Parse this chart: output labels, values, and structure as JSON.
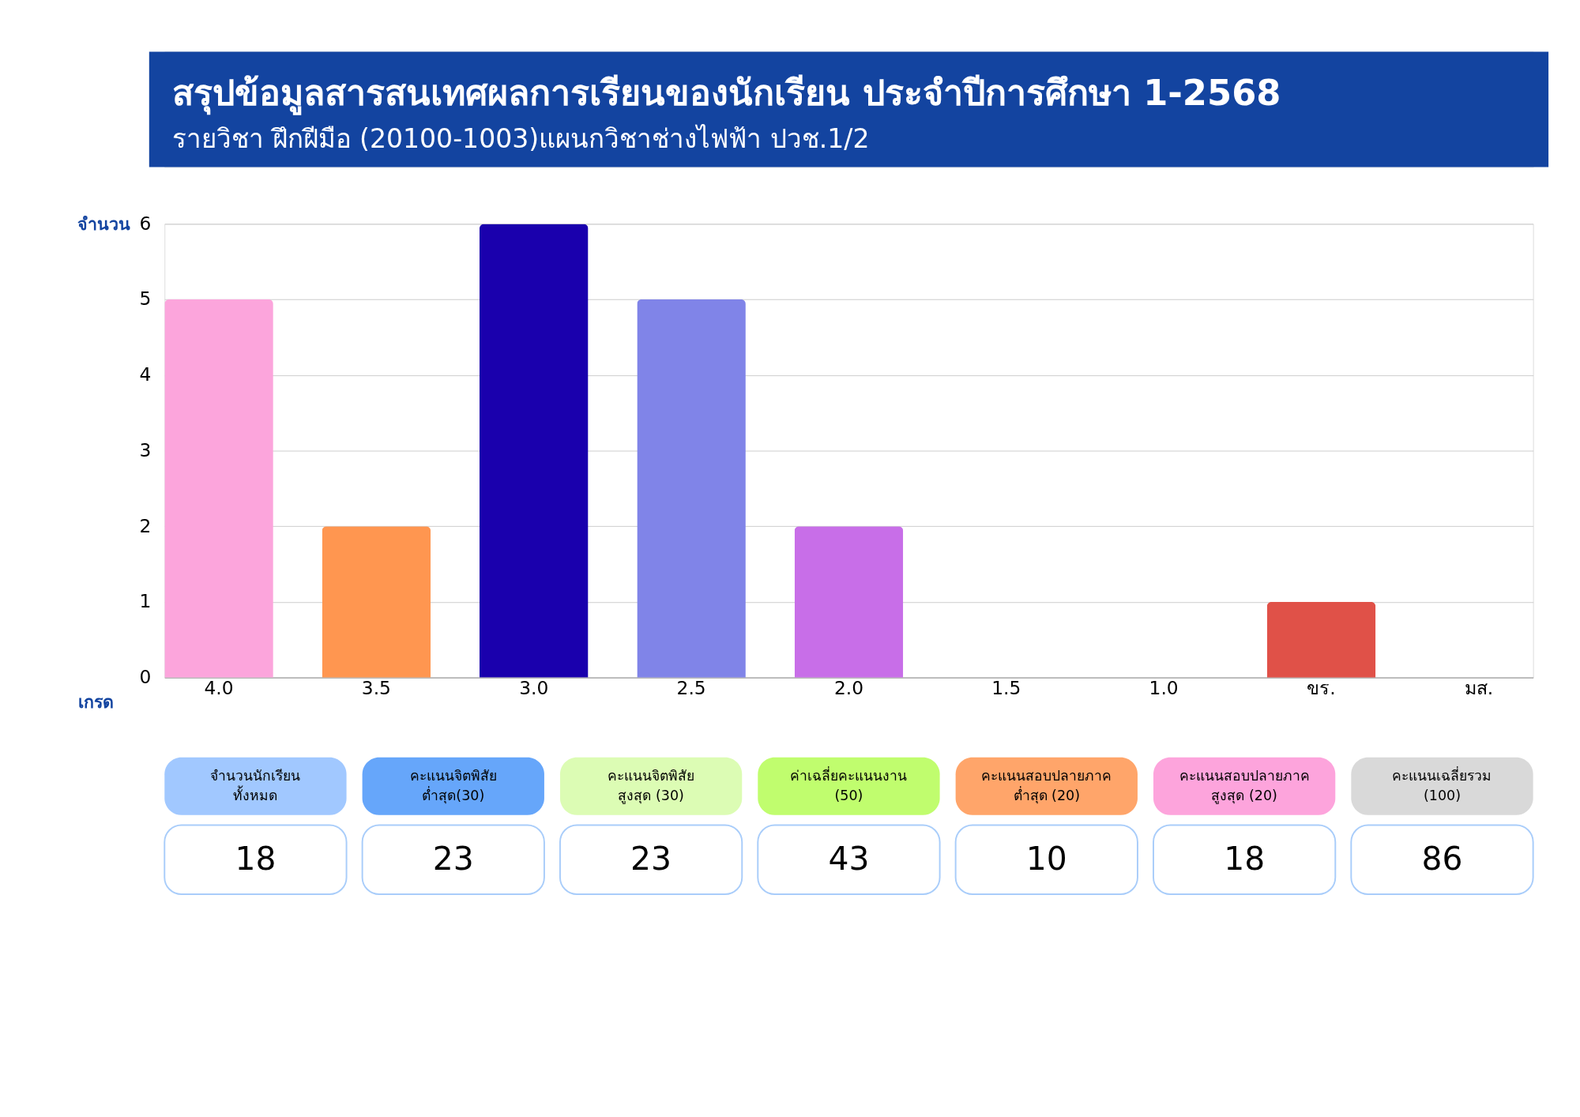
{
  "chart_data": [
    {
      "type": "bar",
      "title": "สรุปข้อมูลสารสนเทศผลการเรียนของนักเรียน ประจำปีการศึกษา 1-2568",
      "subtitle": "รายวิชา ฝึกฝีมือ (20100-1003)แผนกวิชาช่างไฟฟ้า ปวช.1/2",
      "xlabel": "เกรด",
      "ylabel": "จำนวน",
      "categories": [
        "4.0",
        "3.5",
        "3.0",
        "2.5",
        "2.0",
        "1.5",
        "1.0",
        "ขร.",
        "มส."
      ],
      "values": [
        5,
        2,
        6,
        5,
        2,
        0,
        0,
        1,
        0
      ],
      "colors": [
        "#fca5dc",
        "#ff9650",
        "#1a00ad",
        "#8084e8",
        "#c86ee8",
        "#c86ee8",
        "#c86ee8",
        "#e05148",
        "#e05148"
      ],
      "ylim": [
        0,
        6
      ],
      "yticks": [
        0,
        1,
        2,
        3,
        4,
        5,
        6
      ],
      "grid": "y"
    },
    {
      "type": "other",
      "categories": [
        "จำนวนนักเรียน\nทั้งหมด",
        "คะแนนจิตพิสัย\nต่ำสุด(30)",
        "คะแนนจิตพิสัย\nสูงสุด (30)",
        "ค่าเฉลี่ยคะแนนงาน\n(50)",
        "คะแนนสอบปลายภาค\nต่ำสุด (20)",
        "คะแนนสอบปลายภาค\nสูงสุด (20)",
        "คะแนนเฉลี่ยรวม\n(100)"
      ],
      "values": [
        18,
        23,
        23,
        43,
        10,
        18,
        86
      ],
      "colors": [
        "#a1c8ff",
        "#66a6fa",
        "#dcfcb4",
        "#c0fd6e",
        "#ffa56a",
        "#fda4dc",
        "#d9d9d9"
      ],
      "data_labels": true
    }
  ]
}
